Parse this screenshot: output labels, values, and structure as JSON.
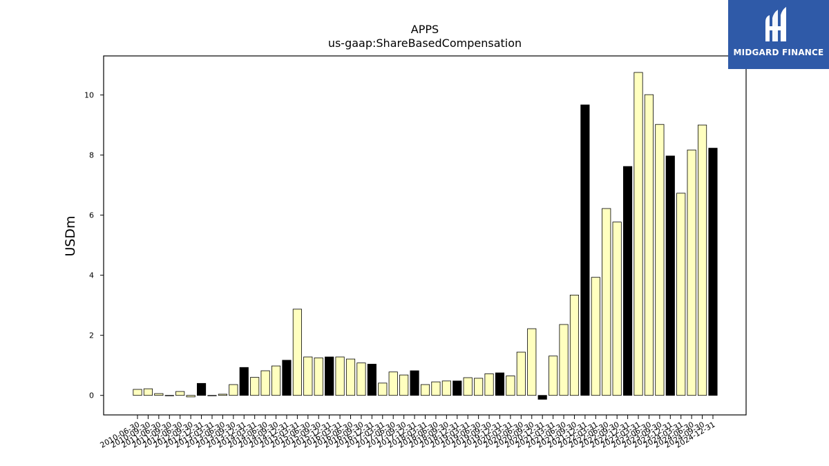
{
  "chart_data": {
    "type": "bar",
    "title": "APPS",
    "subtitle": "us-gaap:ShareBasedCompensation",
    "ylabel": "USDm",
    "xlabel": "",
    "ylim": [
      -0.65,
      11.3
    ],
    "yticks": [
      0,
      2,
      4,
      6,
      8,
      10
    ],
    "grid": false,
    "colors": {
      "quarter": "#ffffbf",
      "annual": "#000000",
      "edge": "#000000"
    },
    "categories": [
      "2010-06-30",
      "2010-09-30",
      "2011-06-30",
      "2011-09-30",
      "2012-06-30",
      "2012-09-30",
      "2012-12-31",
      "2013-03-31",
      "2013-06-30",
      "2013-09-30",
      "2013-12-31",
      "2014-03-31",
      "2014-06-30",
      "2014-09-30",
      "2014-12-31",
      "2015-03-31",
      "2015-06-30",
      "2015-09-30",
      "2015-12-31",
      "2016-03-31",
      "2016-06-30",
      "2016-09-30",
      "2016-12-31",
      "2017-03-31",
      "2017-06-30",
      "2017-09-30",
      "2017-12-31",
      "2018-03-31",
      "2018-06-30",
      "2018-09-30",
      "2018-12-31",
      "2019-03-31",
      "2019-06-30",
      "2019-09-30",
      "2019-12-31",
      "2020-03-31",
      "2020-06-30",
      "2020-09-30",
      "2020-12-31",
      "2021-03-31",
      "2021-06-30",
      "2021-09-30",
      "2021-12-31",
      "2022-03-31",
      "2022-06-30",
      "2022-09-30",
      "2022-12-31",
      "2023-03-31",
      "2023-06-30",
      "2023-09-30",
      "2023-12-31",
      "2024-03-31",
      "2024-06-30",
      "2024-09-30",
      "2024-12-31"
    ],
    "values": [
      0.2,
      0.22,
      0.06,
      0.0,
      0.13,
      -0.05,
      0.4,
      0.0,
      0.04,
      0.36,
      0.93,
      0.6,
      0.82,
      0.98,
      1.17,
      2.87,
      1.28,
      1.25,
      1.28,
      1.28,
      1.21,
      1.08,
      1.04,
      0.41,
      0.78,
      0.68,
      0.82,
      0.36,
      0.45,
      0.48,
      0.48,
      0.59,
      0.57,
      0.72,
      0.75,
      0.65,
      1.44,
      2.22,
      -0.13,
      1.31,
      2.36,
      3.34,
      9.67,
      3.93,
      6.22,
      5.77,
      7.62,
      10.75,
      10.01,
      9.02,
      7.97,
      6.73,
      8.17,
      9.0,
      8.23
    ],
    "annual_flags": [
      0,
      0,
      0,
      0,
      0,
      0,
      1,
      0,
      0,
      0,
      1,
      0,
      0,
      0,
      1,
      0,
      0,
      0,
      1,
      0,
      0,
      0,
      1,
      0,
      0,
      0,
      1,
      0,
      0,
      0,
      1,
      0,
      0,
      0,
      1,
      0,
      0,
      0,
      1,
      0,
      0,
      0,
      1,
      0,
      0,
      0,
      1,
      0,
      0,
      0,
      1,
      0,
      0,
      0,
      1
    ]
  },
  "logo": {
    "text": "MIDGARD FINANCE",
    "bg": "#2f5aa8"
  }
}
